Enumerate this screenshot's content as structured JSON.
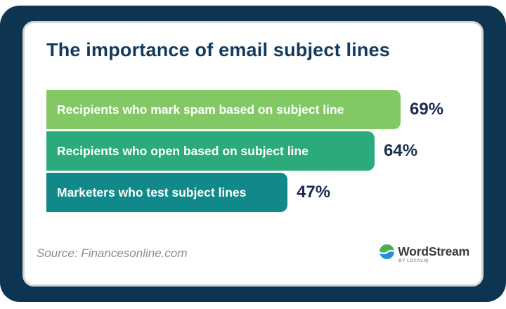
{
  "title": "The importance of email subject lines",
  "chart_data": {
    "type": "bar",
    "orientation": "horizontal",
    "title": "The importance of email subject lines",
    "categories": [
      "Recipients who mark spam based on subject line",
      "Recipients who open based on subject line",
      "Marketers who test subject lines"
    ],
    "values": [
      69,
      64,
      47
    ],
    "value_labels": [
      "69%",
      "64%",
      "47%"
    ],
    "bar_colors": [
      "#82c966",
      "#2baa7b",
      "#11898b"
    ],
    "xlim": [
      0,
      100
    ],
    "grid": false,
    "legend": false,
    "value_label_position": "right-of-bar",
    "category_label_position": "inside-bar"
  },
  "source": "Source: Financesonline.com",
  "logo": {
    "name": "WordStream",
    "byline": "by LOCALIQ",
    "icon": "wordstream-wave-circle-icon",
    "icon_colors": {
      "top": "#45b54a",
      "bottom": "#2591d2",
      "wave": "#ffffff"
    }
  },
  "colors": {
    "frame": "#0d3450",
    "card_background": "#ffffff",
    "card_border": "#d4d4d4",
    "title_text": "#133a5c",
    "value_text": "#1b2b50",
    "source_text": "#8c8c8c",
    "logo_text": "#3a3a3a"
  }
}
